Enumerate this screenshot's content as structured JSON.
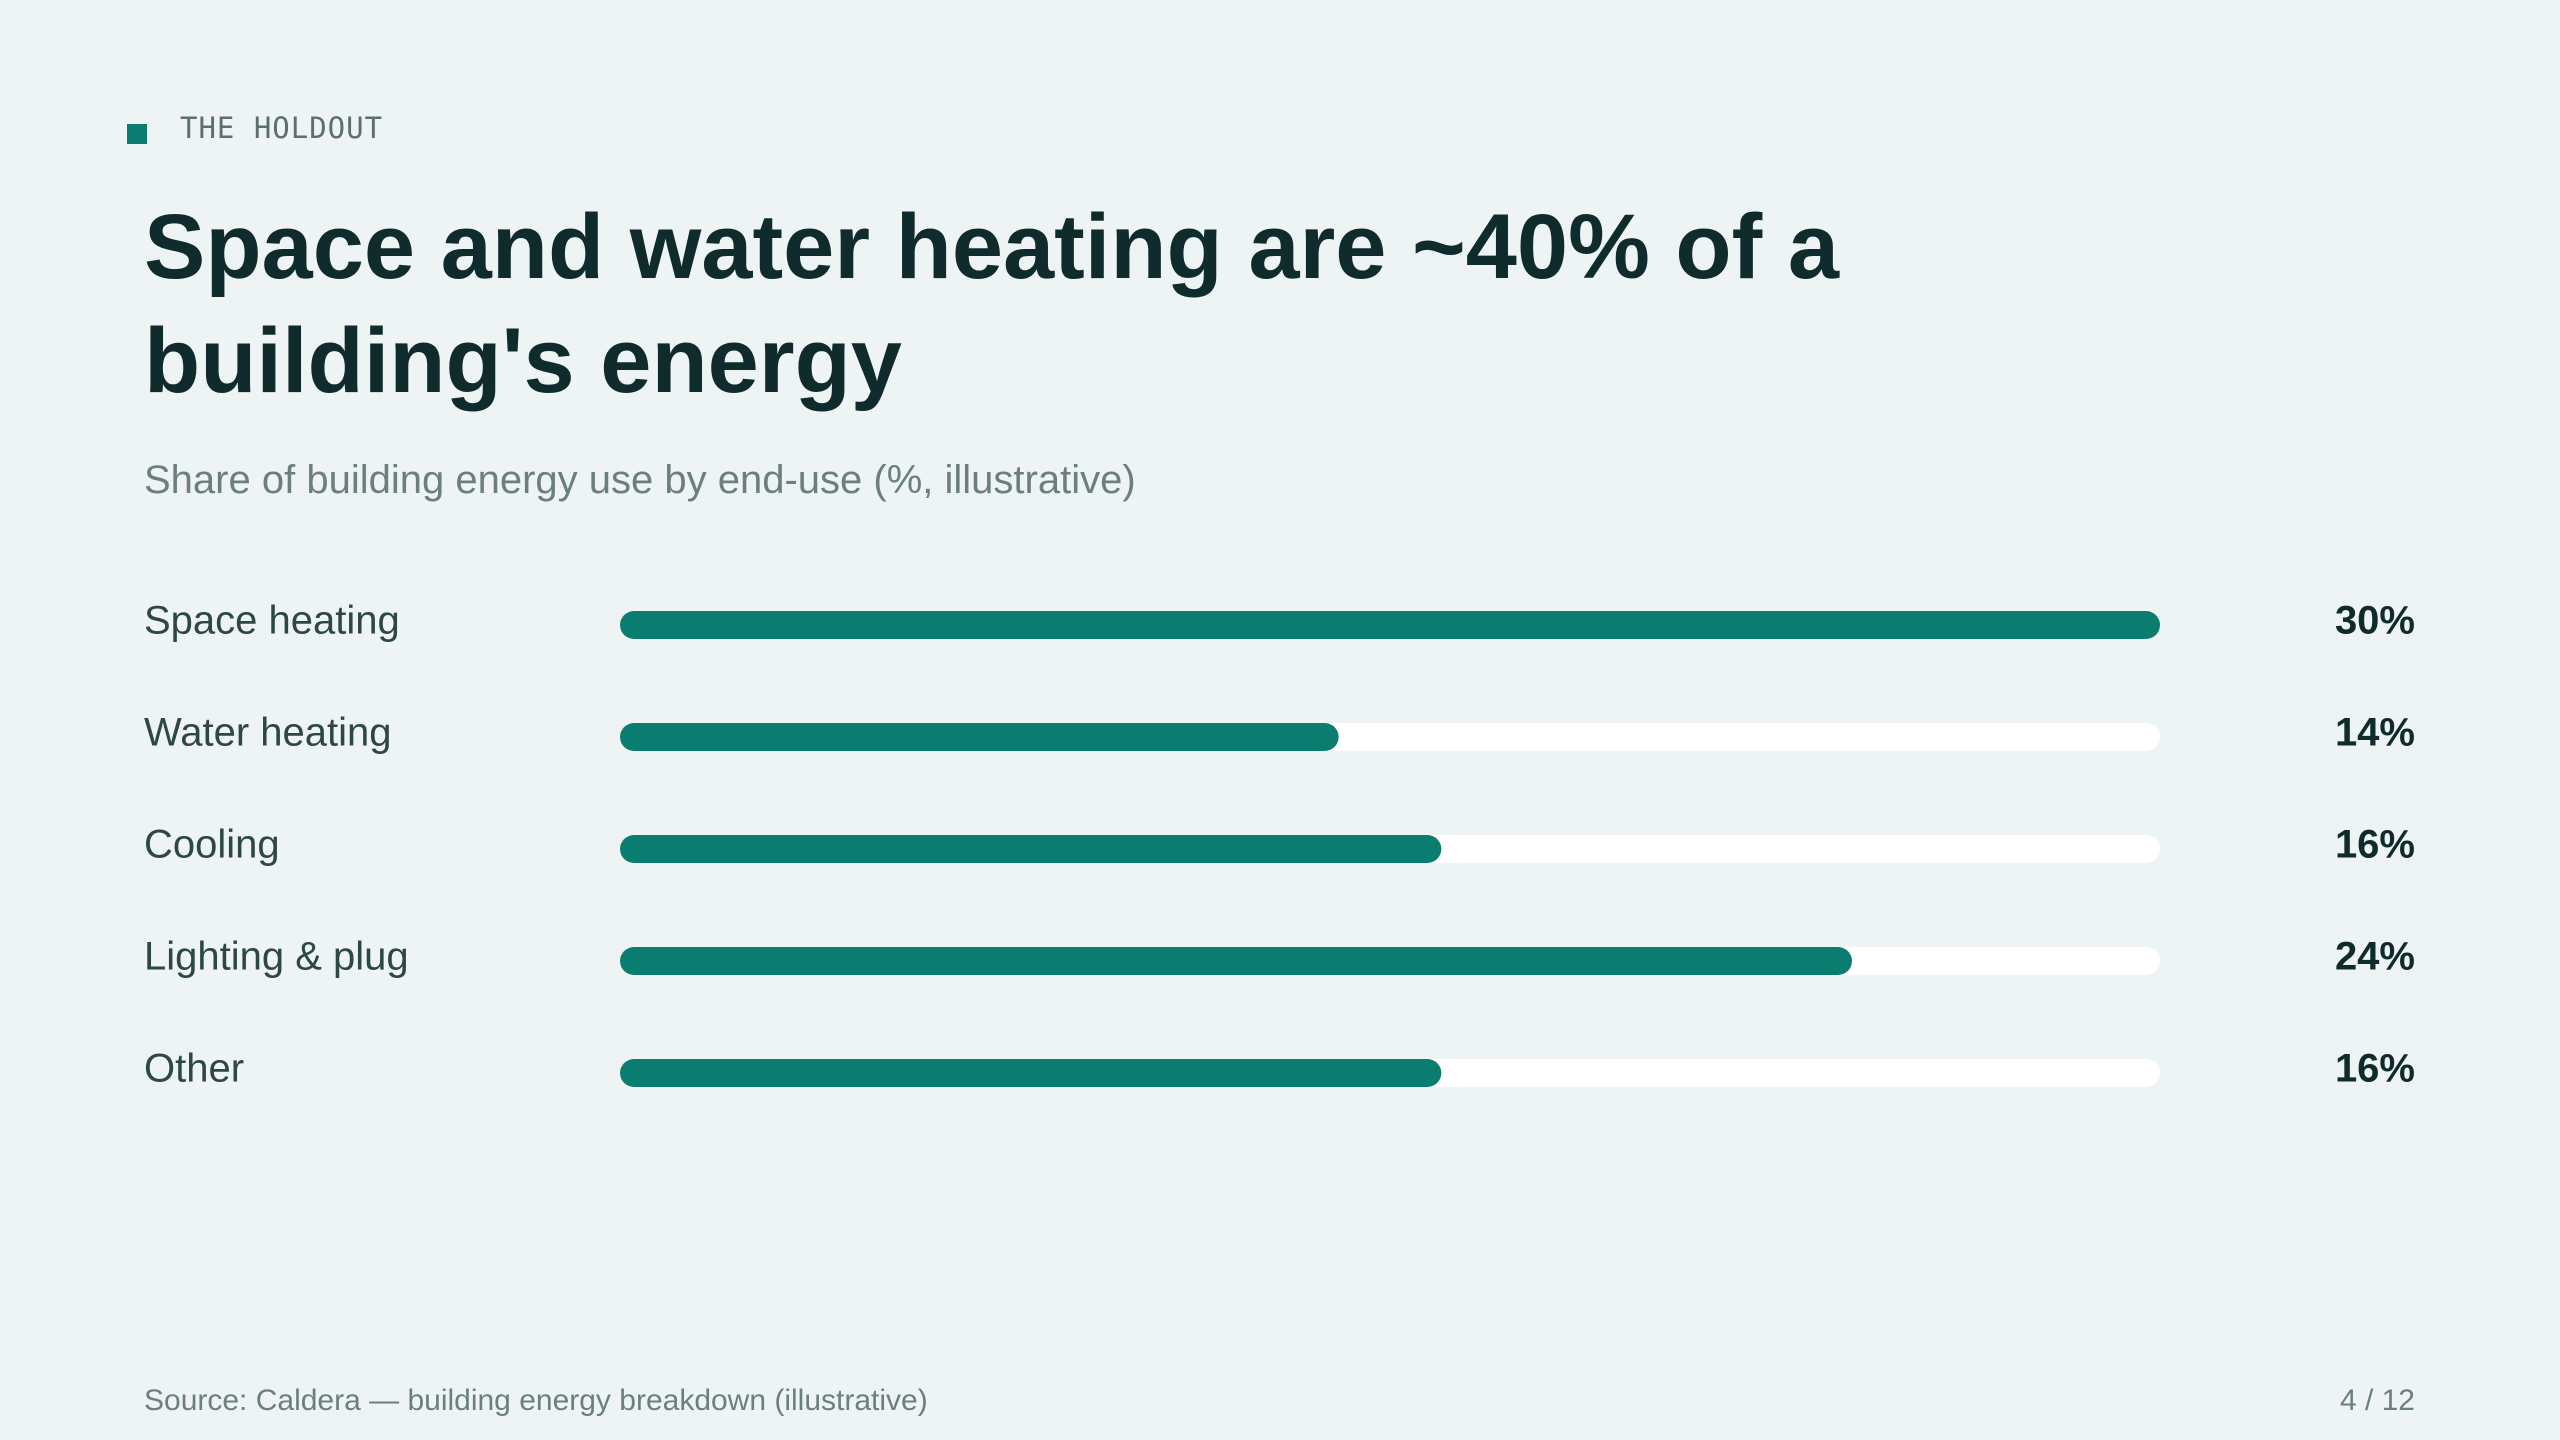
{
  "kicker": "THE HOLDOUT",
  "chart_data": {
    "type": "bar",
    "title": "Space and water heating are ~40% of a building's energy",
    "subtitle": "Share of building energy use by end-use (%, illustrative)",
    "categories": [
      "Space heating",
      "Water heating",
      "Cooling",
      "Lighting & plug",
      "Other"
    ],
    "values": [
      30,
      14,
      16,
      24,
      16
    ],
    "value_labels": [
      "30%",
      "14%",
      "16%",
      "24%",
      "16%"
    ],
    "xlim": [
      0,
      30
    ],
    "color": "#0b7d70",
    "track_color": "#ffffff"
  },
  "footer": {
    "source": "Source: Caldera — building energy breakdown (illustrative)",
    "page": "4 / 12"
  }
}
